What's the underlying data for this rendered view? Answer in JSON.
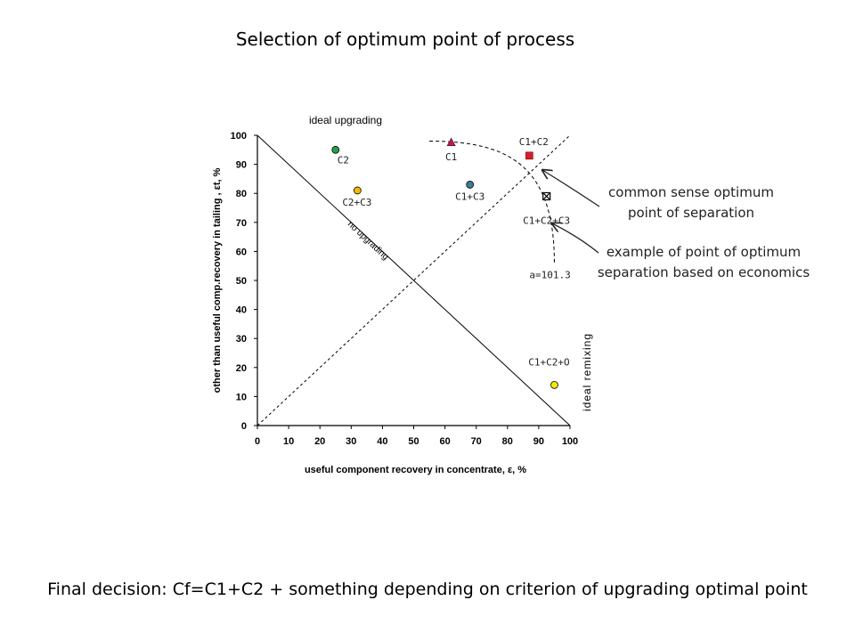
{
  "title": "Selection of optimum point of process",
  "footer": "Final decision: Cf=C1+C2 + something depending on criterion of upgrading optimal point",
  "annotations": {
    "common_sense": "common sense optimum  point of separation",
    "economic": "example of point of optimum separation based on economics"
  },
  "chart_data": {
    "type": "scatter",
    "xlabel": "useful  component   recovery  in concentrate,  ε, %",
    "ylabel": "other  than  useful  comp.recovery  in tailing ,  εt, %",
    "xlim": [
      0,
      100
    ],
    "ylim": [
      0,
      100
    ],
    "xticks": [
      0,
      10,
      20,
      30,
      40,
      50,
      60,
      70,
      80,
      90,
      100
    ],
    "yticks": [
      0,
      10,
      20,
      30,
      40,
      50,
      60,
      70,
      80,
      90,
      100
    ],
    "grid": false,
    "points": [
      {
        "label": "C2",
        "x": 25,
        "y": 95,
        "marker": "circle",
        "color": "#22a04a"
      },
      {
        "label": "C2+C3",
        "x": 32,
        "y": 81,
        "marker": "circle",
        "color": "#f5b800"
      },
      {
        "label": "C1",
        "x": 62,
        "y": 97.5,
        "marker": "triangle",
        "color": "#b0204a"
      },
      {
        "label": "C1+C3",
        "x": 68,
        "y": 83,
        "marker": "circle",
        "color": "#3a7f95"
      },
      {
        "label": "C1+C2",
        "x": 87,
        "y": 93,
        "marker": "square",
        "color": "#d4202e"
      },
      {
        "label": "C1+C2+C3",
        "x": 92.5,
        "y": 79,
        "marker": "xsquare",
        "color": "#222222"
      },
      {
        "label": "C1+C2+O",
        "x": 95,
        "y": 14,
        "marker": "circle",
        "color": "#f5e800"
      }
    ],
    "curve_label": "a=101.3",
    "lines": [
      {
        "label": "no upgrading",
        "style": "solid",
        "from": [
          0,
          100
        ],
        "to": [
          100,
          0
        ]
      },
      {
        "label": "",
        "style": "dashed",
        "from": [
          0,
          0
        ],
        "to": [
          100,
          100
        ]
      }
    ],
    "edge_labels": {
      "top": "ideal upgrading",
      "right": "ideal remixing"
    }
  }
}
